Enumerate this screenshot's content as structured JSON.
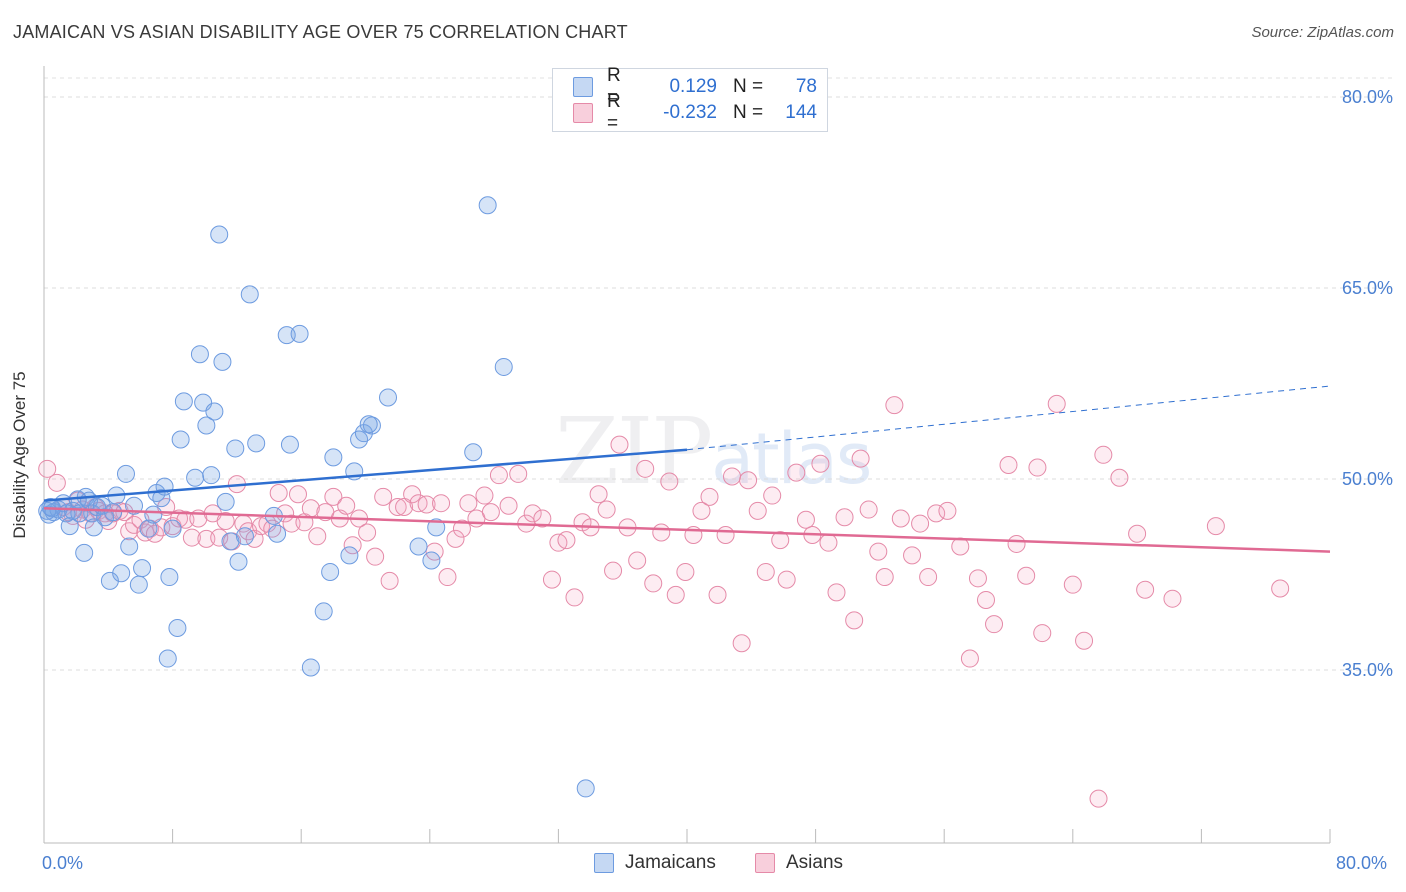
{
  "header": {
    "title": "JAMAICAN VS ASIAN DISABILITY AGE OVER 75 CORRELATION CHART",
    "source": "Source: ZipAtlas.com"
  },
  "watermark": {
    "zip": "ZIP",
    "atlas": "atlas"
  },
  "legend": {
    "rows": [
      {
        "r_label": "R =",
        "r_value": "0.129",
        "n_label": "N =",
        "n_value": "78"
      },
      {
        "r_label": "R =",
        "r_value": "-0.232",
        "n_label": "N =",
        "n_value": "144"
      }
    ]
  },
  "bottom_legend": {
    "jamaicans": "Jamaicans",
    "asians": "Asians"
  },
  "chart_data": {
    "type": "scatter",
    "title": "JAMAICAN VS ASIAN DISABILITY AGE OVER 75 CORRELATION CHART",
    "xlabel": "",
    "ylabel": "Disability Age Over 75",
    "xlim": [
      0,
      80
    ],
    "ylim": [
      20,
      82
    ],
    "x_tick_labels": [
      "0.0%",
      "80.0%"
    ],
    "y_ticks": [
      35,
      50,
      65,
      80
    ],
    "y_tick_labels": [
      "35.0%",
      "50.0%",
      "65.0%",
      "80.0%"
    ],
    "grid": true,
    "legend_position": "top-center",
    "colors": {
      "jamaicans": "#5b8fd6",
      "asians": "#e57fa0",
      "jamaicans_line": "#2f6fd0",
      "asians_line": "#e06a93"
    },
    "series": [
      {
        "name": "Jamaicans",
        "trend": {
          "x": [
            0,
            40
          ],
          "y": [
            48.3,
            52.3
          ],
          "dashed_to": [
            80,
            57.3
          ]
        },
        "points": [
          [
            0.3,
            47.2
          ],
          [
            0.4,
            47.8
          ],
          [
            0.6,
            47.4
          ],
          [
            0.9,
            47.6
          ],
          [
            1.2,
            48.1
          ],
          [
            1.4,
            47.3
          ],
          [
            1.6,
            46.3
          ],
          [
            1.8,
            47.5
          ],
          [
            2.1,
            48.4
          ],
          [
            2.2,
            47.3
          ],
          [
            2.5,
            44.2
          ],
          [
            2.6,
            48.6
          ],
          [
            2.8,
            48.3
          ],
          [
            3.0,
            47.3
          ],
          [
            3.1,
            46.2
          ],
          [
            3.3,
            47.8
          ],
          [
            3.6,
            47.9
          ],
          [
            3.8,
            47.0
          ],
          [
            4.1,
            42.0
          ],
          [
            4.3,
            47.4
          ],
          [
            4.5,
            48.7
          ],
          [
            4.8,
            42.6
          ],
          [
            5.1,
            50.4
          ],
          [
            5.3,
            44.7
          ],
          [
            5.6,
            47.9
          ],
          [
            5.9,
            41.7
          ],
          [
            6.1,
            43.0
          ],
          [
            6.5,
            46.1
          ],
          [
            6.8,
            47.2
          ],
          [
            7.0,
            48.9
          ],
          [
            7.3,
            48.5
          ],
          [
            7.5,
            49.4
          ],
          [
            7.8,
            42.3
          ],
          [
            8.0,
            46.1
          ],
          [
            7.7,
            35.9
          ],
          [
            8.3,
            38.3
          ],
          [
            8.5,
            53.1
          ],
          [
            8.7,
            56.1
          ],
          [
            9.4,
            50.1
          ],
          [
            9.7,
            59.8
          ],
          [
            9.9,
            56.0
          ],
          [
            10.1,
            54.2
          ],
          [
            10.4,
            50.3
          ],
          [
            10.6,
            55.3
          ],
          [
            10.9,
            69.2
          ],
          [
            11.1,
            59.2
          ],
          [
            11.3,
            48.2
          ],
          [
            11.6,
            45.1
          ],
          [
            11.9,
            52.4
          ],
          [
            12.1,
            43.5
          ],
          [
            12.5,
            45.5
          ],
          [
            12.8,
            64.5
          ],
          [
            13.2,
            52.8
          ],
          [
            14.3,
            47.1
          ],
          [
            14.5,
            45.7
          ],
          [
            15.1,
            61.3
          ],
          [
            15.3,
            52.7
          ],
          [
            15.9,
            61.4
          ],
          [
            16.6,
            35.2
          ],
          [
            17.4,
            39.6
          ],
          [
            17.8,
            42.7
          ],
          [
            18.0,
            51.7
          ],
          [
            19.0,
            44.0
          ],
          [
            19.3,
            50.6
          ],
          [
            19.6,
            53.1
          ],
          [
            19.9,
            53.6
          ],
          [
            20.4,
            54.2
          ],
          [
            20.2,
            54.3
          ],
          [
            21.4,
            56.4
          ],
          [
            23.3,
            44.7
          ],
          [
            24.1,
            43.6
          ],
          [
            24.4,
            46.2
          ],
          [
            26.7,
            52.1
          ],
          [
            27.6,
            71.5
          ],
          [
            28.6,
            58.8
          ],
          [
            33.7,
            25.7
          ],
          [
            0.2,
            47.5
          ],
          [
            0.5,
            47.7
          ]
        ]
      },
      {
        "name": "Asians",
        "trend": {
          "x": [
            0,
            80
          ],
          "y": [
            47.7,
            44.3
          ]
        },
        "points": [
          [
            0.2,
            50.8
          ],
          [
            0.8,
            49.7
          ],
          [
            1.2,
            47.8
          ],
          [
            1.5,
            47.4
          ],
          [
            1.8,
            47.1
          ],
          [
            2.1,
            48.3
          ],
          [
            2.4,
            47.6
          ],
          [
            2.6,
            46.8
          ],
          [
            2.9,
            47.3
          ],
          [
            3.2,
            47.8
          ],
          [
            3.4,
            47.5
          ],
          [
            3.8,
            47.3
          ],
          [
            4.0,
            46.7
          ],
          [
            4.3,
            47.3
          ],
          [
            4.7,
            47.5
          ],
          [
            5.0,
            47.4
          ],
          [
            5.3,
            45.9
          ],
          [
            5.6,
            46.4
          ],
          [
            6.0,
            46.8
          ],
          [
            6.3,
            45.8
          ],
          [
            6.6,
            46.1
          ],
          [
            6.9,
            45.7
          ],
          [
            7.3,
            46.2
          ],
          [
            7.6,
            47.8
          ],
          [
            8.0,
            46.3
          ],
          [
            8.4,
            46.9
          ],
          [
            8.8,
            46.8
          ],
          [
            9.2,
            45.4
          ],
          [
            9.6,
            46.9
          ],
          [
            10.1,
            45.3
          ],
          [
            10.5,
            47.3
          ],
          [
            10.9,
            45.4
          ],
          [
            11.3,
            46.7
          ],
          [
            11.7,
            45.1
          ],
          [
            12.0,
            49.6
          ],
          [
            12.4,
            46.5
          ],
          [
            12.7,
            45.9
          ],
          [
            13.1,
            45.3
          ],
          [
            13.5,
            46.3
          ],
          [
            13.9,
            46.5
          ],
          [
            14.2,
            46.1
          ],
          [
            14.6,
            48.9
          ],
          [
            15.0,
            47.3
          ],
          [
            15.4,
            46.5
          ],
          [
            15.8,
            48.8
          ],
          [
            16.2,
            46.6
          ],
          [
            16.6,
            47.7
          ],
          [
            17.0,
            45.5
          ],
          [
            17.5,
            47.4
          ],
          [
            18.0,
            48.6
          ],
          [
            18.4,
            46.9
          ],
          [
            18.8,
            47.9
          ],
          [
            19.2,
            44.8
          ],
          [
            19.6,
            46.9
          ],
          [
            20.1,
            45.8
          ],
          [
            20.6,
            43.9
          ],
          [
            21.1,
            48.6
          ],
          [
            21.5,
            42.0
          ],
          [
            22.0,
            47.8
          ],
          [
            22.4,
            47.8
          ],
          [
            22.9,
            48.8
          ],
          [
            23.3,
            48.1
          ],
          [
            23.8,
            48.0
          ],
          [
            24.3,
            44.3
          ],
          [
            24.7,
            48.1
          ],
          [
            25.1,
            42.3
          ],
          [
            25.6,
            45.3
          ],
          [
            26.0,
            46.1
          ],
          [
            26.4,
            48.1
          ],
          [
            26.9,
            46.9
          ],
          [
            27.4,
            48.7
          ],
          [
            27.8,
            47.4
          ],
          [
            28.3,
            50.3
          ],
          [
            28.9,
            47.9
          ],
          [
            29.5,
            50.4
          ],
          [
            30.0,
            46.5
          ],
          [
            30.4,
            47.3
          ],
          [
            31.0,
            46.9
          ],
          [
            31.6,
            42.1
          ],
          [
            32.0,
            45.0
          ],
          [
            32.5,
            45.2
          ],
          [
            33.0,
            40.7
          ],
          [
            33.5,
            46.6
          ],
          [
            34.0,
            46.2
          ],
          [
            34.5,
            48.8
          ],
          [
            35.0,
            47.6
          ],
          [
            35.4,
            42.8
          ],
          [
            35.8,
            52.7
          ],
          [
            36.3,
            46.2
          ],
          [
            36.9,
            43.6
          ],
          [
            37.4,
            50.8
          ],
          [
            37.9,
            41.8
          ],
          [
            38.4,
            45.8
          ],
          [
            38.9,
            49.8
          ],
          [
            39.3,
            40.9
          ],
          [
            39.9,
            42.7
          ],
          [
            40.4,
            45.6
          ],
          [
            40.9,
            47.5
          ],
          [
            41.4,
            48.6
          ],
          [
            41.9,
            40.9
          ],
          [
            42.4,
            45.6
          ],
          [
            42.8,
            50.2
          ],
          [
            43.4,
            37.1
          ],
          [
            43.8,
            49.9
          ],
          [
            44.4,
            47.5
          ],
          [
            44.9,
            42.7
          ],
          [
            45.3,
            48.7
          ],
          [
            45.8,
            45.2
          ],
          [
            46.2,
            42.1
          ],
          [
            46.8,
            50.5
          ],
          [
            47.4,
            46.8
          ],
          [
            47.8,
            45.6
          ],
          [
            48.3,
            51.2
          ],
          [
            48.8,
            45.0
          ],
          [
            49.3,
            41.1
          ],
          [
            49.8,
            47.0
          ],
          [
            50.4,
            38.9
          ],
          [
            50.8,
            51.6
          ],
          [
            51.3,
            47.6
          ],
          [
            51.9,
            44.3
          ],
          [
            52.3,
            42.3
          ],
          [
            52.9,
            55.8
          ],
          [
            53.3,
            46.9
          ],
          [
            54.0,
            44.0
          ],
          [
            54.5,
            46.5
          ],
          [
            55.0,
            42.3
          ],
          [
            55.5,
            47.3
          ],
          [
            56.2,
            47.5
          ],
          [
            57.0,
            44.7
          ],
          [
            57.6,
            35.9
          ],
          [
            58.1,
            42.2
          ],
          [
            58.6,
            40.5
          ],
          [
            59.1,
            38.6
          ],
          [
            60.0,
            51.1
          ],
          [
            60.5,
            44.9
          ],
          [
            61.1,
            42.4
          ],
          [
            61.8,
            50.9
          ],
          [
            62.1,
            37.9
          ],
          [
            63.0,
            55.9
          ],
          [
            64.0,
            41.7
          ],
          [
            64.7,
            37.3
          ],
          [
            65.6,
            24.9
          ],
          [
            65.9,
            51.9
          ],
          [
            66.9,
            50.1
          ],
          [
            68.0,
            45.7
          ],
          [
            68.5,
            41.3
          ],
          [
            70.2,
            40.6
          ],
          [
            72.9,
            46.3
          ],
          [
            76.9,
            41.4
          ]
        ]
      }
    ]
  }
}
